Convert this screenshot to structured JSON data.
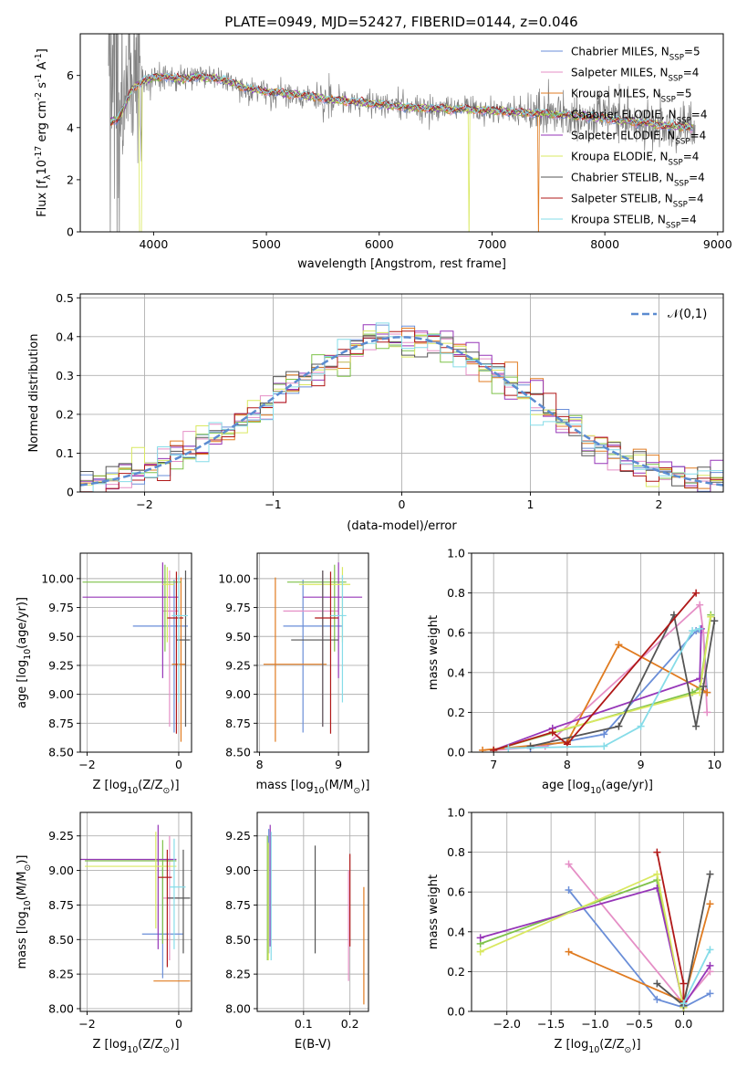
{
  "figure_title": "PLATE=0949, MJD=52427, FIBERID=0144, z=0.046",
  "colors": {
    "series": [
      "#6a8ed8",
      "#e58fc6",
      "#e07b20",
      "#7fc24a",
      "#9636b8",
      "#d9e860",
      "#555555",
      "#b01818",
      "#86dce8"
    ],
    "data": "#808080",
    "normal": "#5b8bd0",
    "grid": "#b0b0b0"
  },
  "series_names": [
    "Chabrier MILES, N$_{SSP}$=5",
    "Salpeter MILES, N$_{SSP}$=4",
    "Kroupa MILES, N$_{SSP}$=5",
    "Chabrier ELODIE, N$_{SSP}$=4",
    "Salpeter ELODIE, N$_{SSP}$=4",
    "Kroupa ELODIE, N$_{SSP}$=4",
    "Chabrier STELIB, N$_{SSP}$=4",
    "Salpeter STELIB, N$_{SSP}$=4",
    "Kroupa STELIB, N$_{SSP}$=4"
  ],
  "chart_data": [
    {
      "id": "spectrum",
      "type": "line",
      "title": "PLATE=0949, MJD=52427, FIBERID=0144, z=0.046",
      "xlabel": "wavelength [Angstrom, rest frame]",
      "ylabel": "Flux [f$_\\lambda$10$^{-17}$ erg cm$^{-2}$ s$^{-1}$ A$^{-1}$]",
      "xlim": [
        3350,
        9050
      ],
      "ylim": [
        0,
        7.6
      ],
      "xticks": [
        4000,
        5000,
        6000,
        7000,
        8000,
        9000
      ],
      "yticks": [
        0,
        2,
        4,
        6
      ],
      "legend_position": "top-right",
      "model_continuum": {
        "wavelength": [
          3620,
          3700,
          3750,
          3800,
          3900,
          4000,
          4100,
          4200,
          4300,
          4400,
          4500,
          4600,
          4700,
          4800,
          4900,
          5000,
          5200,
          5400,
          5600,
          5800,
          6000,
          6200,
          6400,
          6600,
          6800,
          7000,
          7200,
          7400,
          7600,
          7800,
          8000,
          8200,
          8400,
          8600,
          8780
        ],
        "flux": [
          4.2,
          4.4,
          4.9,
          5.4,
          5.8,
          5.9,
          6.0,
          5.85,
          5.9,
          5.95,
          5.9,
          5.85,
          5.7,
          5.55,
          5.45,
          5.4,
          5.3,
          5.2,
          5.05,
          5.0,
          4.9,
          4.8,
          4.75,
          4.72,
          4.7,
          4.65,
          4.6,
          4.55,
          4.5,
          4.45,
          4.35,
          4.25,
          4.15,
          4.05,
          4.0
        ]
      },
      "data_range": [
        3600,
        8800
      ]
    },
    {
      "id": "residuals",
      "type": "bar",
      "xlabel": "(data-model)/error",
      "ylabel": "Normed distribution",
      "xlim": [
        -2.5,
        2.5
      ],
      "ylim": [
        0,
        0.51
      ],
      "xticks": [
        -2,
        -1,
        0,
        1,
        2
      ],
      "yticks": [
        0.0,
        0.1,
        0.2,
        0.3,
        0.4,
        0.5
      ],
      "bin_width": 0.1,
      "bins_start": -2.5,
      "legend": "$\\mathcal{N}(0,1)$",
      "legend_position": "top-right"
    },
    {
      "id": "age_vs_Z",
      "type": "scatter",
      "xlabel": "Z [log$_{10}$(Z/Z$_\\odot$)]",
      "ylabel": "age  [log$_{10}$(age/yr)]",
      "xlim": [
        -2.15,
        0.28
      ],
      "ylim": [
        8.5,
        10.22
      ],
      "xticks": [
        -2,
        0
      ],
      "yticks": [
        8.5,
        8.75,
        9.0,
        9.25,
        9.5,
        9.75,
        10.0
      ],
      "xtick_labels": [
        "−2",
        "0"
      ],
      "yticks_labels": [
        "8.50",
        "8.75",
        "9.00",
        "9.25",
        "9.50",
        "9.75",
        "10.00"
      ],
      "points": [
        {
          "x": -0.1,
          "xerr": [
            0.9,
            0.3
          ],
          "y": 9.59,
          "yerr": [
            0.92,
            0.4
          ]
        },
        {
          "x": -0.2,
          "xerr": [
            0.15,
            0.2
          ],
          "y": 9.72,
          "yerr": [
            1.0,
            0.35
          ]
        },
        {
          "x": 0.05,
          "xerr": [
            0.2,
            0.1
          ],
          "y": 9.26,
          "yerr": [
            0.67,
            0.75
          ]
        },
        {
          "x": -0.3,
          "xerr": [
            1.8,
            0.35
          ],
          "y": 9.97,
          "yerr": [
            0.6,
            0.15
          ]
        },
        {
          "x": -0.35,
          "xerr": [
            1.75,
            0.35
          ],
          "y": 9.84,
          "yerr": [
            0.7,
            0.3
          ]
        },
        {
          "x": -0.25,
          "xerr": [
            0.1,
            0.15
          ],
          "y": 9.95,
          "yerr": [
            0.5,
            0.15
          ]
        },
        {
          "x": 0.15,
          "xerr": [
            0.2,
            0.1
          ],
          "y": 9.47,
          "yerr": [
            0.75,
            0.6
          ]
        },
        {
          "x": -0.05,
          "xerr": [
            0.2,
            0.15
          ],
          "y": 9.66,
          "yerr": [
            1.0,
            0.4
          ]
        },
        {
          "x": 0.0,
          "xerr": [
            0.15,
            0.2
          ],
          "y": 9.68,
          "yerr": [
            0.75,
            0.35
          ]
        }
      ]
    },
    {
      "id": "age_vs_mass",
      "type": "scatter",
      "xlabel": "mass [log$_{10}$(M/M$_\\odot$)]",
      "ylabel": "",
      "xlim": [
        7.97,
        9.38
      ],
      "ylim": [
        8.5,
        10.22
      ],
      "xticks": [
        8,
        9
      ],
      "yticks": [
        8.5,
        8.75,
        9.0,
        9.25,
        9.5,
        9.75,
        10.0
      ],
      "xtick_labels": [
        "8",
        "9"
      ],
      "yticks_labels": [
        "8.50",
        "8.75",
        "9.00",
        "9.25",
        "9.50",
        "9.75",
        "10.00"
      ],
      "points": [
        {
          "x": 8.55,
          "xerr": [
            0.25,
            0.5
          ],
          "y": 9.59,
          "yerr": [
            0.92,
            0.4
          ]
        },
        {
          "x": 8.8,
          "xerr": [
            0.5,
            0.2
          ],
          "y": 9.72,
          "yerr": [
            1.0,
            0.35
          ]
        },
        {
          "x": 8.2,
          "xerr": [
            0.15,
            0.65
          ],
          "y": 9.26,
          "yerr": [
            0.67,
            0.75
          ]
        },
        {
          "x": 8.95,
          "xerr": [
            0.6,
            0.15
          ],
          "y": 9.97,
          "yerr": [
            0.6,
            0.15
          ]
        },
        {
          "x": 9.0,
          "xerr": [
            0.45,
            0.3
          ],
          "y": 9.84,
          "yerr": [
            0.7,
            0.3
          ]
        },
        {
          "x": 9.05,
          "xerr": [
            0.55,
            0.1
          ],
          "y": 9.95,
          "yerr": [
            0.5,
            0.15
          ]
        },
        {
          "x": 8.8,
          "xerr": [
            0.4,
            0.2
          ],
          "y": 9.47,
          "yerr": [
            0.75,
            0.6
          ]
        },
        {
          "x": 8.9,
          "xerr": [
            0.2,
            0.1
          ],
          "y": 9.66,
          "yerr": [
            1.0,
            0.4
          ]
        },
        {
          "x": 9.05,
          "xerr": [
            0.15,
            0.05
          ],
          "y": 9.68,
          "yerr": [
            0.75,
            0.35
          ]
        }
      ]
    },
    {
      "id": "mass_weight_vs_age",
      "type": "line",
      "xlabel": "age  [log$_{10}$(age/yr)]",
      "ylabel": "mass weight",
      "xlim": [
        6.7,
        10.12
      ],
      "ylim": [
        0,
        1.0
      ],
      "xticks": [
        7,
        8,
        9,
        10
      ],
      "yticks": [
        0.0,
        0.2,
        0.4,
        0.6,
        0.8,
        1.0
      ],
      "xtick_labels": [
        "7",
        "8",
        "9",
        "10"
      ],
      "yticks_labels": [
        "0.0",
        "0.2",
        "0.4",
        "0.6",
        "0.8",
        "1.0"
      ],
      "series": [
        {
          "x": [
            7.5,
            8.5,
            9.75,
            9.85,
            9.9
          ],
          "y": [
            0.02,
            0.09,
            0.61,
            0.6,
            0.3
          ]
        },
        {
          "x": [
            7.0,
            7.7,
            9.8,
            9.85,
            9.9
          ],
          "y": [
            0.01,
            0.03,
            0.74,
            0.6,
            0.2
          ]
        },
        {
          "x": [
            6.85,
            8.0,
            8.7,
            9.9
          ],
          "y": [
            0.01,
            0.05,
            0.54,
            0.3
          ]
        },
        {
          "x": [
            7.0,
            9.7,
            9.8,
            9.95
          ],
          "y": [
            0.01,
            0.3,
            0.32,
            0.69
          ]
        },
        {
          "x": [
            7.0,
            7.8,
            9.8,
            9.82
          ],
          "y": [
            0.01,
            0.12,
            0.37,
            0.62
          ]
        },
        {
          "x": [
            7.0,
            7.8,
            9.8,
            9.95
          ],
          "y": [
            0.01,
            0.1,
            0.3,
            0.68
          ]
        },
        {
          "x": [
            7.5,
            8.7,
            9.45,
            9.75,
            9.85,
            10.0
          ],
          "y": [
            0.03,
            0.13,
            0.69,
            0.13,
            0.33,
            0.66
          ]
        },
        {
          "x": [
            7.0,
            7.8,
            8.0,
            9.75
          ],
          "y": [
            0.01,
            0.1,
            0.04,
            0.8
          ]
        },
        {
          "x": [
            7.2,
            8.5,
            9.0,
            9.7,
            9.8
          ],
          "y": [
            0.02,
            0.03,
            0.13,
            0.61,
            0.62
          ]
        }
      ]
    },
    {
      "id": "mass_vs_Z",
      "type": "scatter",
      "xlabel": "Z [log$_{10}$(Z/Z$_\\odot$)]",
      "ylabel": "mass [log$_{10}$(M/M$_\\odot$)]",
      "xlim": [
        -2.15,
        0.28
      ],
      "ylim": [
        7.98,
        9.42
      ],
      "xticks": [
        -2,
        0
      ],
      "yticks": [
        8.0,
        8.25,
        8.5,
        8.75,
        9.0,
        9.25
      ],
      "xtick_labels": [
        "−2",
        "0"
      ],
      "yticks_labels": [
        "8.00",
        "8.25",
        "8.50",
        "8.75",
        "9.00",
        "9.25"
      ],
      "points": [
        {
          "x": -0.35,
          "xerr": [
            0.45,
            0.45
          ],
          "y": 8.54,
          "yerr": [
            0.32,
            0.48
          ]
        },
        {
          "x": -0.2,
          "xerr": [
            0.15,
            0.2
          ],
          "y": 8.8,
          "yerr": [
            0.45,
            0.45
          ]
        },
        {
          "x": 0.05,
          "xerr": [
            0.6,
            0.2
          ],
          "y": 8.2,
          "yerr": [
            0.0,
            0.0
          ]
        },
        {
          "x": -0.35,
          "xerr": [
            1.7,
            0.3
          ],
          "y": 9.07,
          "yerr": [
            0.6,
            0.15
          ]
        },
        {
          "x": -0.45,
          "xerr": [
            1.7,
            0.4
          ],
          "y": 9.08,
          "yerr": [
            0.65,
            0.25
          ]
        },
        {
          "x": -0.5,
          "xerr": [
            1.55,
            0.45
          ],
          "y": 9.03,
          "yerr": [
            0.45,
            0.25
          ]
        },
        {
          "x": 0.1,
          "xerr": [
            0.35,
            0.15
          ],
          "y": 8.8,
          "yerr": [
            0.4,
            0.35
          ]
        },
        {
          "x": -0.25,
          "xerr": [
            0.2,
            0.1
          ],
          "y": 8.95,
          "yerr": [
            0.65,
            0.2
          ]
        },
        {
          "x": -0.1,
          "xerr": [
            0.1,
            0.25
          ],
          "y": 8.88,
          "yerr": [
            0.45,
            0.35
          ]
        }
      ]
    },
    {
      "id": "mass_vs_ebv",
      "type": "scatter",
      "xlabel": "E(B-V)",
      "ylabel": "",
      "xlim": [
        0.0,
        0.24
      ],
      "ylim": [
        7.98,
        9.42
      ],
      "xticks": [
        0.1,
        0.2
      ],
      "yticks": [
        8.0,
        8.25,
        8.5,
        8.75,
        9.0,
        9.25
      ],
      "xtick_labels": [
        "0.1",
        "0.2"
      ],
      "yticks_labels": [
        "8.00",
        "8.25",
        "8.50",
        "8.75",
        "9.00",
        "9.25"
      ],
      "points": [
        {
          "x": 0.025,
          "y": 8.9,
          "yerr": [
            0.5,
            0.4
          ]
        },
        {
          "x": 0.197,
          "y": 8.5,
          "yerr": [
            0.3,
            0.5
          ]
        },
        {
          "x": 0.23,
          "y": 8.45,
          "yerr": [
            0.42,
            0.43
          ]
        },
        {
          "x": 0.022,
          "y": 8.85,
          "yerr": [
            0.5,
            0.4
          ]
        },
        {
          "x": 0.028,
          "y": 8.9,
          "yerr": [
            0.45,
            0.43
          ]
        },
        {
          "x": 0.024,
          "y": 8.75,
          "yerr": [
            0.4,
            0.45
          ]
        },
        {
          "x": 0.125,
          "y": 8.8,
          "yerr": [
            0.4,
            0.38
          ]
        },
        {
          "x": 0.2,
          "y": 8.8,
          "yerr": [
            0.35,
            0.32
          ]
        },
        {
          "x": 0.03,
          "y": 8.8,
          "yerr": [
            0.45,
            0.48
          ]
        }
      ]
    },
    {
      "id": "mass_weight_vs_Z",
      "type": "line",
      "xlabel": "Z [log$_{10}$(Z/Z$_\\odot$)]",
      "ylabel": "mass weight",
      "xlim": [
        -2.4,
        0.45
      ],
      "ylim": [
        0,
        1.0
      ],
      "xticks": [
        -2.0,
        -1.5,
        -1.0,
        -0.5,
        0.0
      ],
      "yticks": [
        0.0,
        0.2,
        0.4,
        0.6,
        0.8,
        1.0
      ],
      "xtick_labels": [
        "−2.0",
        "−1.5",
        "−1.0",
        "−0.5",
        "0.0"
      ],
      "yticks_labels": [
        "0.0",
        "0.2",
        "0.4",
        "0.6",
        "0.8",
        "1.0"
      ],
      "series": [
        {
          "x": [
            -1.3,
            -0.3,
            0.0,
            0.3
          ],
          "y": [
            0.61,
            0.06,
            0.02,
            0.09
          ]
        },
        {
          "x": [
            -1.3,
            0.0,
            0.3
          ],
          "y": [
            0.74,
            0.04,
            0.2
          ]
        },
        {
          "x": [
            -1.3,
            0.0,
            0.3
          ],
          "y": [
            0.3,
            0.05,
            0.54
          ]
        },
        {
          "x": [
            -2.3,
            -0.3,
            0.0
          ],
          "y": [
            0.34,
            0.66,
            0.02
          ]
        },
        {
          "x": [
            -2.3,
            -0.3,
            0.0,
            0.3
          ],
          "y": [
            0.37,
            0.62,
            0.03,
            0.23
          ]
        },
        {
          "x": [
            -2.3,
            -0.3,
            0.0
          ],
          "y": [
            0.3,
            0.69,
            0.02
          ]
        },
        {
          "x": [
            -0.3,
            0.0,
            0.3
          ],
          "y": [
            0.14,
            0.03,
            0.69
          ]
        },
        {
          "x": [
            -0.3,
            0.0,
            0.0
          ],
          "y": [
            0.8,
            0.14,
            0.05
          ]
        },
        {
          "x": [
            0.0,
            0.3
          ],
          "y": [
            0.04,
            0.31
          ]
        }
      ]
    }
  ]
}
